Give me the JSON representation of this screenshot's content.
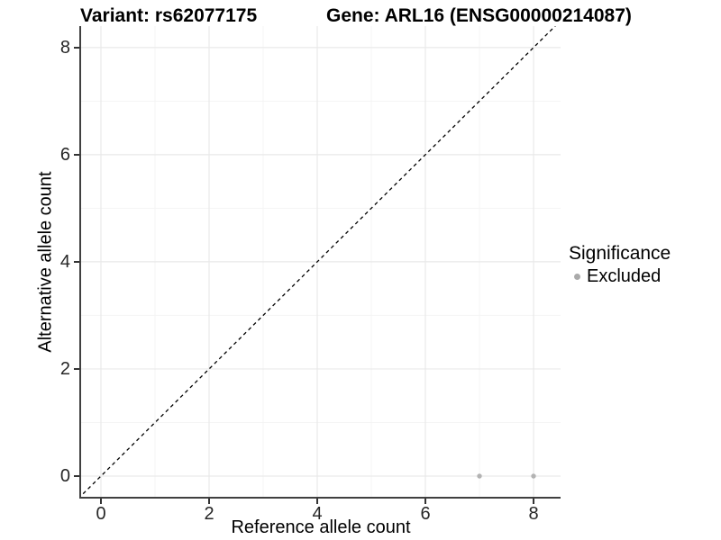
{
  "chart_data": {
    "type": "scatter",
    "titles": {
      "left": "Variant: rs62077175",
      "right": "Gene: ARL16 (ENSG00000214087)"
    },
    "xlabel": "Reference allele count",
    "ylabel": "Alternative allele count",
    "xlim": [
      -0.4,
      8.5
    ],
    "ylim": [
      -0.42,
      8.4
    ],
    "xticks": [
      0,
      2,
      4,
      6,
      8
    ],
    "yticks": [
      0,
      2,
      4,
      6,
      8
    ],
    "xticks_minor": [
      1,
      3,
      5,
      7
    ],
    "yticks_minor": [
      1,
      3,
      5,
      7
    ],
    "grid": {
      "major_color": "#e9e9e9",
      "minor_color": "#f4f4f4"
    },
    "axis_color": "#404040",
    "identity_line": {
      "style": "dashed",
      "x": [
        -0.42,
        8.42
      ],
      "y": [
        -0.42,
        8.42
      ],
      "color": "#000000"
    },
    "series": [
      {
        "name": "Excluded",
        "color": "#b3b3b3",
        "points": [
          {
            "x": 7,
            "y": 0
          },
          {
            "x": 8,
            "y": 0
          }
        ]
      }
    ],
    "legend": {
      "title": "Significance",
      "position": "right",
      "items": [
        {
          "label": "Excluded",
          "color": "#aaaaaa",
          "marker": "circle"
        }
      ]
    }
  }
}
